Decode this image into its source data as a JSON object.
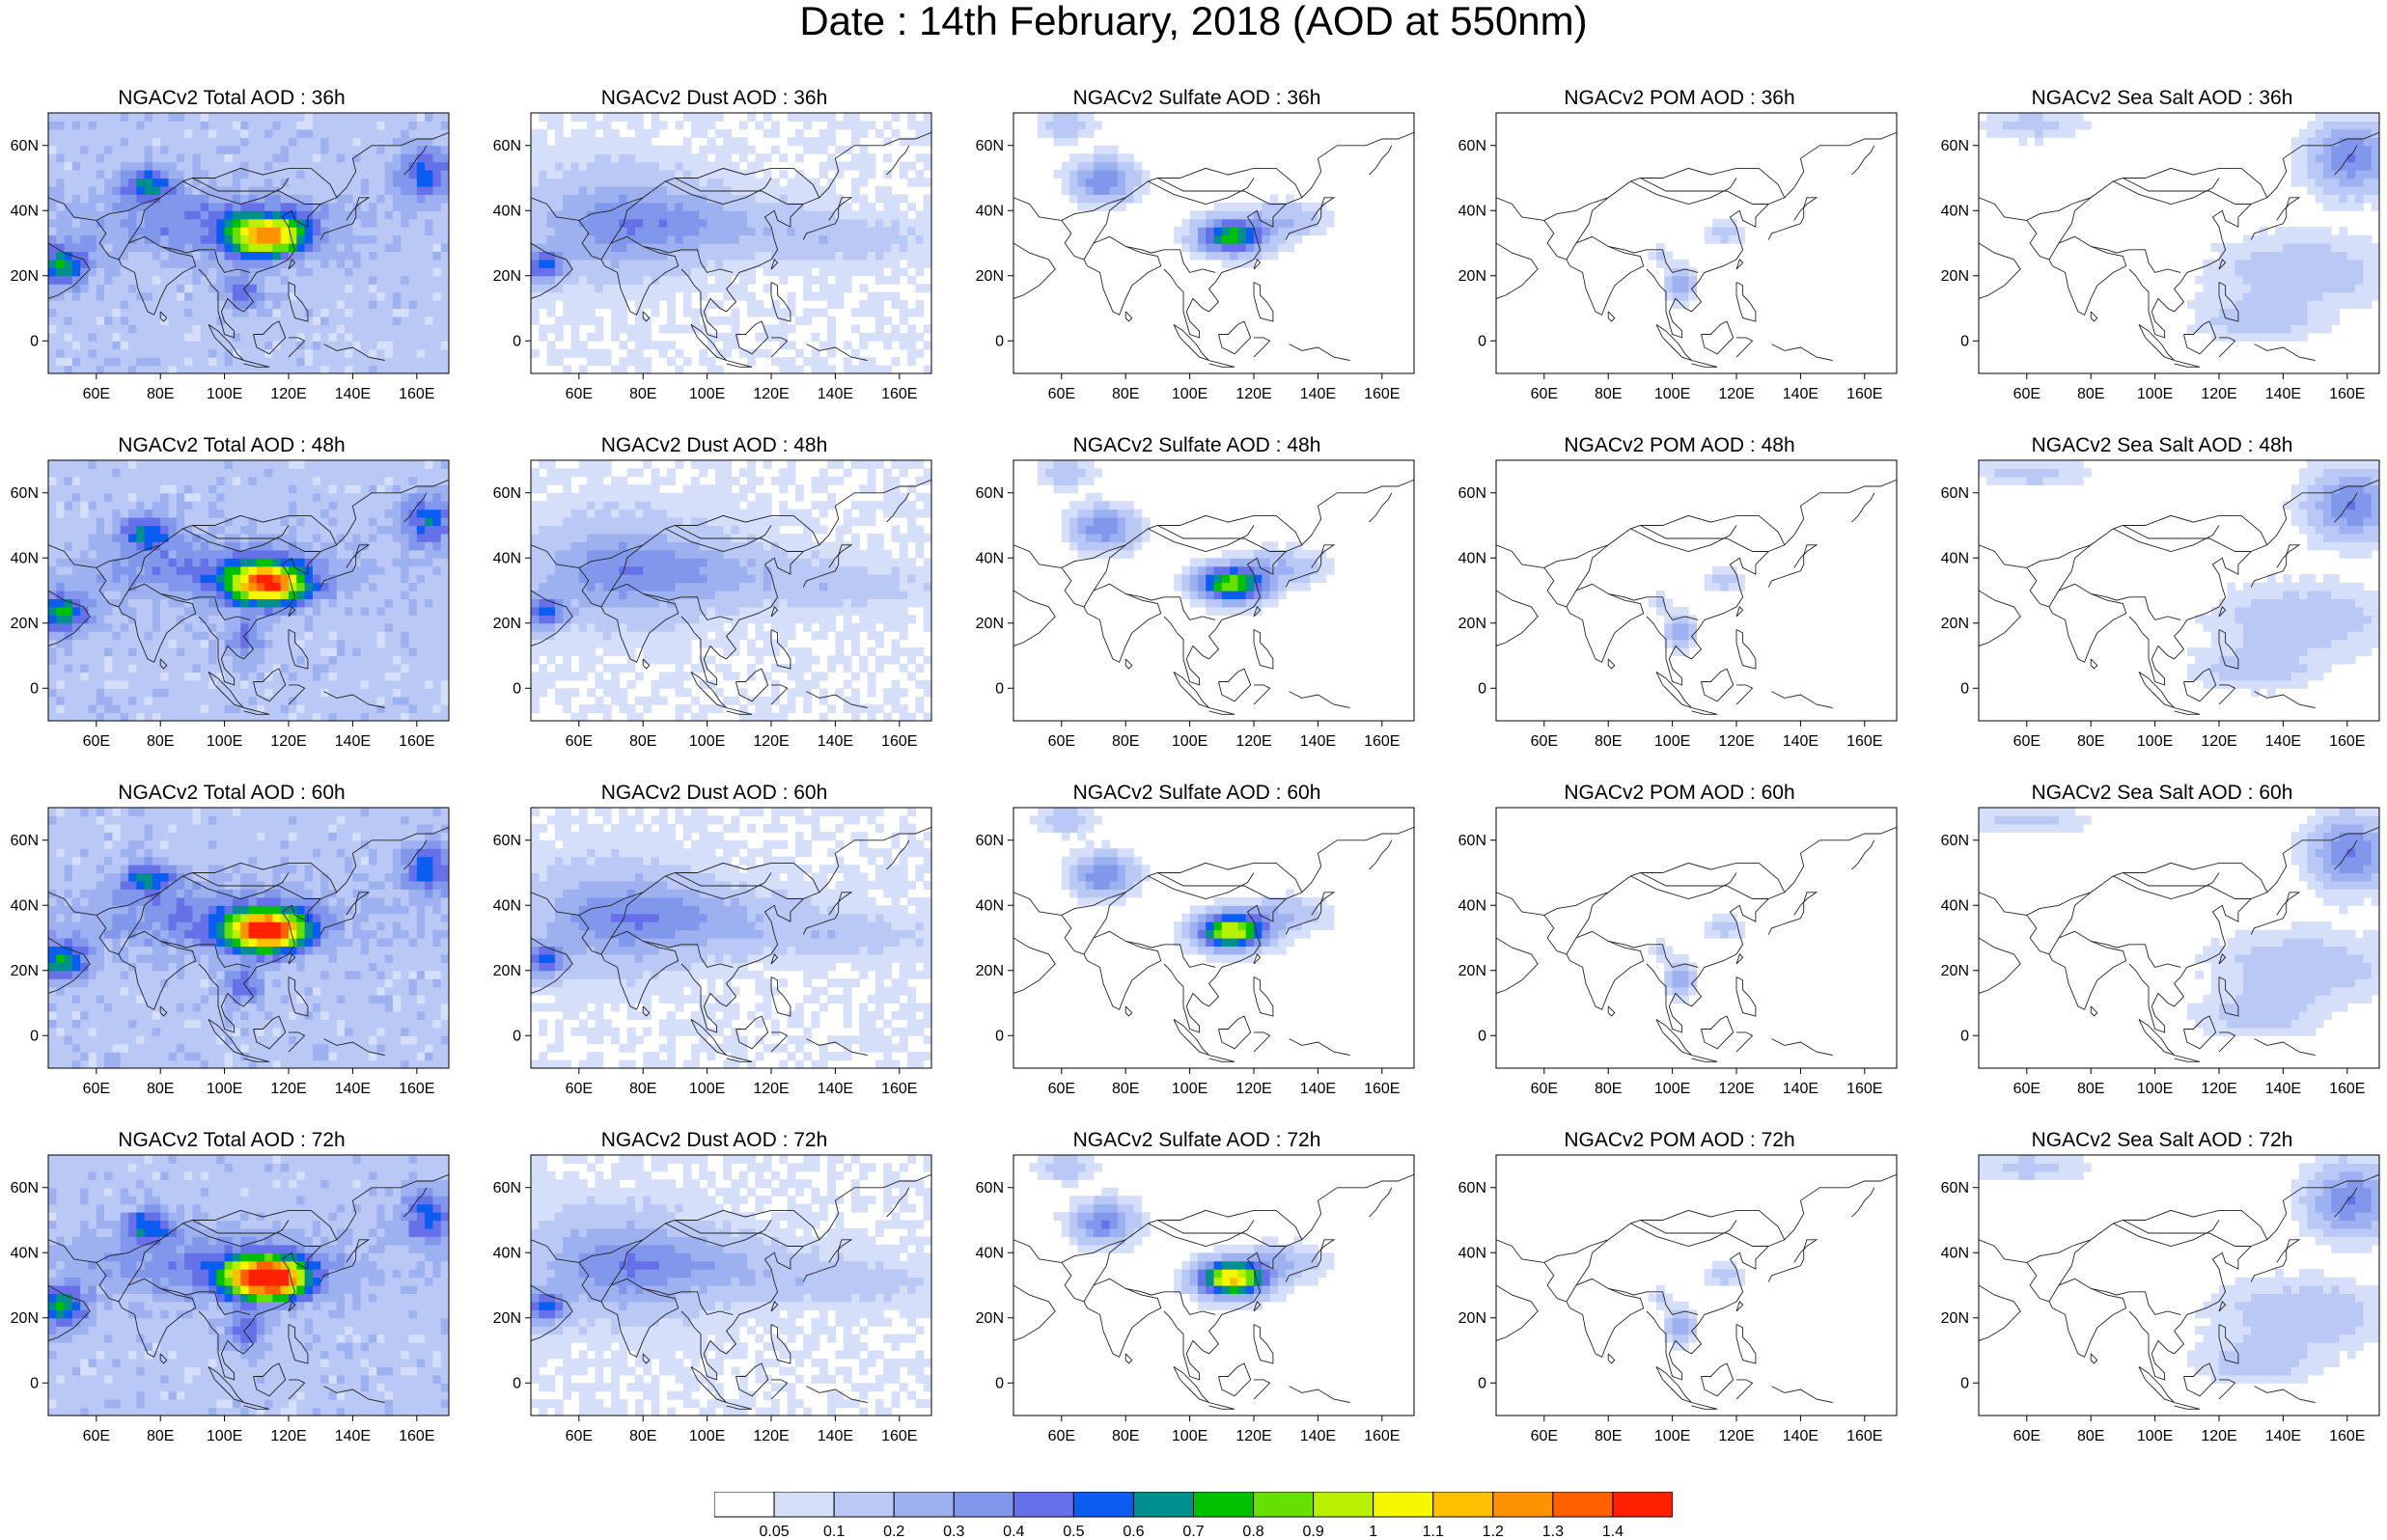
{
  "title": "Date : 14th February, 2018 (AOD at 550nm)",
  "map_extent": {
    "lon": [
      45,
      170
    ],
    "lat": [
      -10,
      70
    ]
  },
  "lon_ticks": [
    "60E",
    "80E",
    "100E",
    "120E",
    "140E",
    "160E"
  ],
  "lat_ticks": [
    "60N",
    "40N",
    "20N",
    "0"
  ],
  "panels": [
    {
      "title": "NGACv2 Total AOD : 36h",
      "species": "total",
      "hour": 36
    },
    {
      "title": "NGACv2 Dust AOD : 36h",
      "species": "dust",
      "hour": 36
    },
    {
      "title": "NGACv2 Sulfate AOD : 36h",
      "species": "sulfate",
      "hour": 36
    },
    {
      "title": "NGACv2 POM AOD : 36h",
      "species": "pom",
      "hour": 36
    },
    {
      "title": "NGACv2 Sea Salt AOD : 36h",
      "species": "seasalt",
      "hour": 36
    },
    {
      "title": "NGACv2 Total AOD : 48h",
      "species": "total",
      "hour": 48
    },
    {
      "title": "NGACv2 Dust AOD : 48h",
      "species": "dust",
      "hour": 48
    },
    {
      "title": "NGACv2 Sulfate AOD : 48h",
      "species": "sulfate",
      "hour": 48
    },
    {
      "title": "NGACv2 POM AOD : 48h",
      "species": "pom",
      "hour": 48
    },
    {
      "title": "NGACv2 Sea Salt AOD : 48h",
      "species": "seasalt",
      "hour": 48
    },
    {
      "title": "NGACv2 Total AOD : 60h",
      "species": "total",
      "hour": 60
    },
    {
      "title": "NGACv2 Dust AOD : 60h",
      "species": "dust",
      "hour": 60
    },
    {
      "title": "NGACv2 Sulfate AOD : 60h",
      "species": "sulfate",
      "hour": 60
    },
    {
      "title": "NGACv2 POM AOD : 60h",
      "species": "pom",
      "hour": 60
    },
    {
      "title": "NGACv2 Sea Salt AOD : 60h",
      "species": "seasalt",
      "hour": 60
    },
    {
      "title": "NGACv2 Total AOD : 72h",
      "species": "total",
      "hour": 72
    },
    {
      "title": "NGACv2 Dust AOD : 72h",
      "species": "dust",
      "hour": 72
    },
    {
      "title": "NGACv2 Sulfate AOD : 72h",
      "species": "sulfate",
      "hour": 72
    },
    {
      "title": "NGACv2 POM AOD : 72h",
      "species": "pom",
      "hour": 72
    },
    {
      "title": "NGACv2 Sea Salt  AOD : 72h",
      "species": "seasalt",
      "hour": 72
    }
  ],
  "colorbar": {
    "labels": [
      "0.05",
      "0.1",
      "0.2",
      "0.3",
      "0.4",
      "0.5",
      "0.6",
      "0.7",
      "0.8",
      "0.9",
      "1",
      "1.1",
      "1.2",
      "1.3",
      "1.4"
    ],
    "colors": [
      "#ffffff",
      "#d6dffa",
      "#bac8f5",
      "#9db0ef",
      "#8097eb",
      "#6670e8",
      "#0b5cf0",
      "#008f8f",
      "#00c000",
      "#66e000",
      "#b8f000",
      "#f7f700",
      "#ffc000",
      "#ff9200",
      "#ff6000",
      "#ff2000"
    ]
  },
  "aod_fields": {
    "total": {
      "base": 0.15,
      "plumes": [
        {
          "lon": 112,
          "lat": 31,
          "rx": 12,
          "ry": 6,
          "aod": 1.0
        },
        {
          "lon": 75,
          "lat": 47,
          "rx": 8,
          "ry": 5,
          "aod": 0.45
        },
        {
          "lon": 48,
          "lat": 22,
          "rx": 8,
          "ry": 6,
          "aod": 0.55
        },
        {
          "lon": 95,
          "lat": 35,
          "rx": 40,
          "ry": 10,
          "aod": 0.25
        },
        {
          "lon": 162,
          "lat": 50,
          "rx": 8,
          "ry": 8,
          "aod": 0.4
        },
        {
          "lon": 105,
          "lat": 14,
          "rx": 6,
          "ry": 6,
          "aod": 0.3
        }
      ]
    },
    "dust": {
      "base": 0.05,
      "plumes": [
        {
          "lon": 70,
          "lat": 35,
          "rx": 25,
          "ry": 15,
          "aod": 0.25
        },
        {
          "lon": 95,
          "lat": 35,
          "rx": 30,
          "ry": 9,
          "aod": 0.18
        },
        {
          "lon": 140,
          "lat": 30,
          "rx": 25,
          "ry": 6,
          "aod": 0.12
        },
        {
          "lon": 48,
          "lat": 22,
          "rx": 6,
          "ry": 5,
          "aod": 0.45
        }
      ]
    },
    "sulfate": {
      "base": 0.02,
      "plumes": [
        {
          "lon": 112,
          "lat": 31,
          "rx": 10,
          "ry": 5,
          "aod": 0.75
        },
        {
          "lon": 72,
          "lat": 48,
          "rx": 9,
          "ry": 6,
          "aod": 0.38
        },
        {
          "lon": 128,
          "lat": 36,
          "rx": 12,
          "ry": 5,
          "aod": 0.18
        },
        {
          "lon": 60,
          "lat": 65,
          "rx": 8,
          "ry": 4,
          "aod": 0.15
        }
      ]
    },
    "pom": {
      "base": 0.0,
      "plumes": [
        {
          "lon": 101,
          "lat": 16,
          "rx": 4,
          "ry": 5,
          "aod": 0.32
        },
        {
          "lon": 115,
          "lat": 32,
          "rx": 6,
          "ry": 4,
          "aod": 0.14
        },
        {
          "lon": 95,
          "lat": 25,
          "rx": 3,
          "ry": 3,
          "aod": 0.12
        }
      ]
    },
    "seasalt": {
      "base": 0.02,
      "plumes": [
        {
          "lon": 160,
          "lat": 55,
          "rx": 12,
          "ry": 10,
          "aod": 0.38
        },
        {
          "lon": 145,
          "lat": 20,
          "rx": 25,
          "ry": 10,
          "aod": 0.15
        },
        {
          "lon": 60,
          "lat": 65,
          "rx": 15,
          "ry": 4,
          "aod": 0.12
        },
        {
          "lon": 130,
          "lat": 5,
          "rx": 18,
          "ry": 6,
          "aod": 0.12
        }
      ]
    }
  }
}
